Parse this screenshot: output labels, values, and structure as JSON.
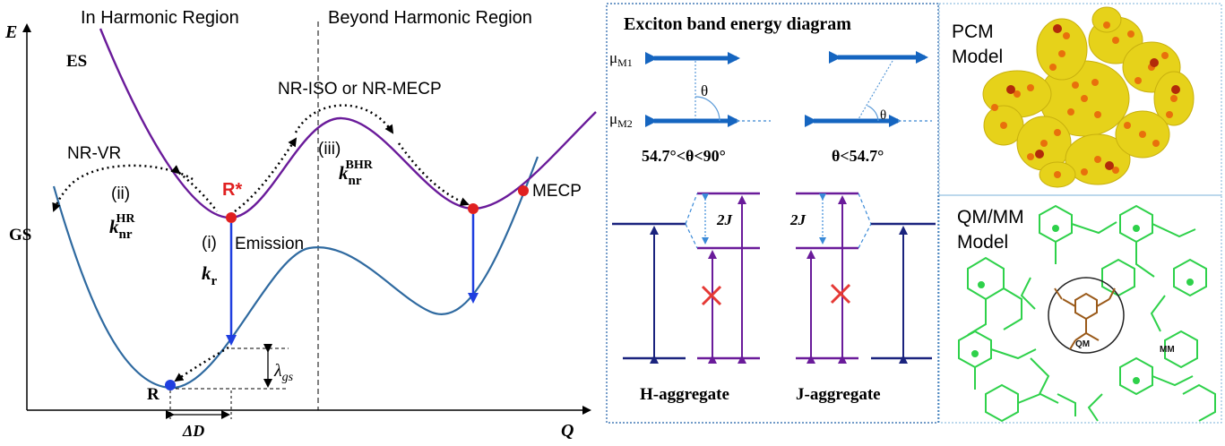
{
  "panel_a": {
    "axis_y": "E",
    "axis_x": "Q",
    "region_left": "In Harmonic Region",
    "region_right": "Beyond Harmonic Region",
    "es_label": "ES",
    "gs_label": "GS",
    "nr_vr": "NR-VR",
    "nr_iso": "NR-ISO or NR-MECP",
    "step_ii": "(ii)",
    "k_nr": "k",
    "k_nr_sub": "nr",
    "sup_hr": "HR",
    "step_iii": "(iii)",
    "sup_bhr": "BHR",
    "r_star": "R*",
    "step_i": "(i)",
    "emission": "Emission",
    "k_r": "k",
    "k_r_sub": "r",
    "r_label": "R",
    "mecp": "MECP",
    "lambda": "λ",
    "lambda_sub": "gs",
    "delta_d": "ΔD",
    "colors": {
      "ground": "#2f6aa0",
      "excited": "#6a1b9a",
      "emission": "#1f3fe0",
      "point_red": "#e02020",
      "point_blue": "#1f3fe0"
    }
  },
  "panel_b": {
    "title": "Exciton band energy diagram",
    "mu": "μ",
    "mu_m1_sub": "M1",
    "mu_m2_sub": "M2",
    "theta": "θ",
    "cond_left": "54.7°<θ<90°",
    "cond_right": "θ<54.7°",
    "two_j": "2J",
    "h_agg": "H-aggregate",
    "j_agg": "J-aggregate",
    "colors": {
      "arrow": "#1565c0",
      "level_blue": "#1a237e",
      "level_purple": "#6a1b9a",
      "cross": "#e53935",
      "border": "#1f5fa8"
    }
  },
  "panel_c": {
    "pcm": [
      "PCM",
      "Model"
    ],
    "qmmm": [
      "QM/MM",
      "Model"
    ],
    "qm": "QM",
    "mm": "MM",
    "colors": {
      "pcm_surface": "#e6d21a",
      "pcm_atoms": "#e8700c",
      "mm_green": "#2ed14a",
      "qm_brown": "#9a5a1a"
    }
  }
}
